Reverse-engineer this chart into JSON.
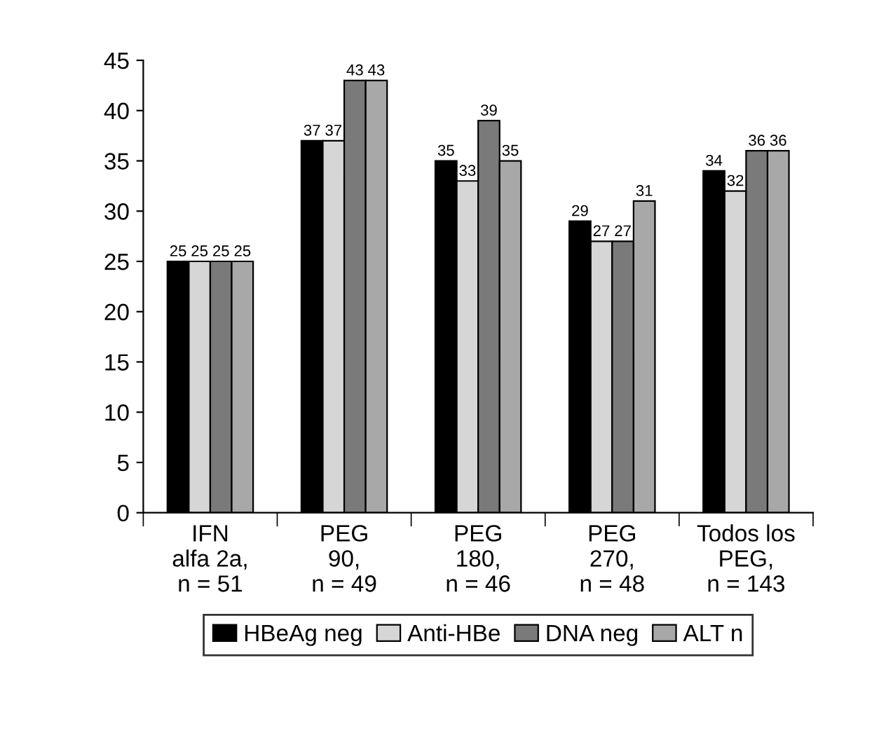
{
  "chart_data": {
    "type": "bar",
    "categories": [
      "IFN\nalfa 2a,\nn = 51",
      "PEG\n90,\nn = 49",
      "PEG\n180,\nn = 46",
      "PEG\n270,\nn = 48",
      "Todos los\nPEG,\nn = 143"
    ],
    "series": [
      {
        "name": "HBeAg neg",
        "color": "#000000",
        "values": [
          25,
          37,
          35,
          29,
          34
        ]
      },
      {
        "name": "Anti-HBe",
        "color": "#d6d6d6",
        "values": [
          25,
          37,
          33,
          27,
          32
        ]
      },
      {
        "name": "DNA neg",
        "color": "#7a7a7a",
        "values": [
          25,
          43,
          39,
          27,
          36
        ]
      },
      {
        "name": "ALT n",
        "color": "#a8a8a8",
        "values": [
          25,
          43,
          35,
          31,
          36
        ]
      }
    ],
    "ylim": [
      0,
      45
    ],
    "yticks": [
      0,
      5,
      10,
      15,
      20,
      25,
      30,
      35,
      40,
      45
    ],
    "data_labels": true,
    "legend": "bottom",
    "grid": false
  }
}
